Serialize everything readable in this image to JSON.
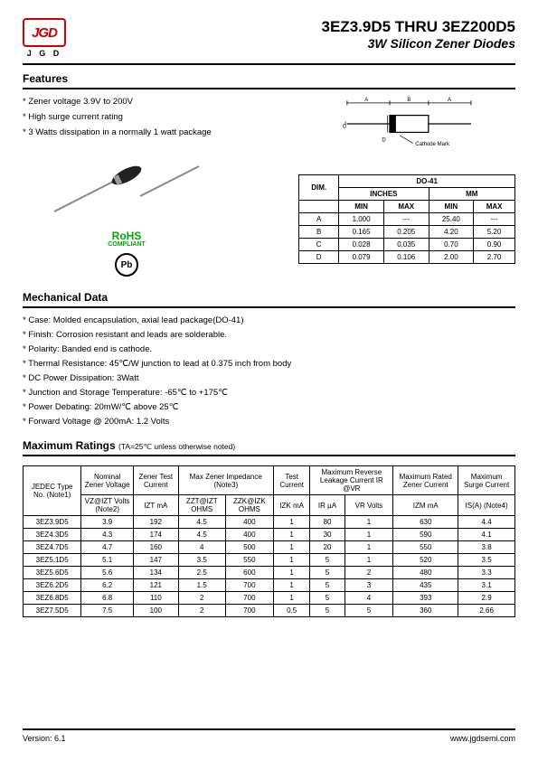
{
  "header": {
    "logo_text": "JGD",
    "logo_letters": "J G D",
    "title": "3EZ3.9D5 THRU 3EZ200D5",
    "subtitle": "3W Silicon Zener Diodes"
  },
  "features": {
    "heading": "Features",
    "items": [
      "* Zener voltage 3.9V to 200V",
      "* High surge current rating",
      "* 3 Watts dissipation in a normally 1 watt package"
    ]
  },
  "rohs": {
    "main": "RoHS",
    "sub": "COMPLIANT"
  },
  "pb_label": "Pb",
  "cathode_label": "Cathode Mark",
  "dim_labels": {
    "A": "A",
    "B": "B",
    "C": "C",
    "D": "D"
  },
  "dim_table": {
    "title": "DO-41",
    "dim_head": "DIM.",
    "units": [
      "INCHES",
      "MM"
    ],
    "sub": [
      "MIN",
      "MAX",
      "MIN",
      "MAX"
    ],
    "rows": [
      [
        "A",
        "1.000",
        "---",
        "25.40",
        "---"
      ],
      [
        "B",
        "0.165",
        "0.205",
        "4.20",
        "5.20"
      ],
      [
        "C",
        "0.028",
        "0.035",
        "0.70",
        "0.90"
      ],
      [
        "D",
        "0.079",
        "0.106",
        "2.00",
        "2.70"
      ]
    ]
  },
  "mechanical": {
    "heading": "Mechanical Data",
    "items": [
      "* Case: Molded encapsulation, axial lead package(DO-41)",
      "* Finish: Corrosion resistant and leads are solderable.",
      "* Polarity: Banded end is cathode.",
      "* Thermal Resistance: 45℃/W junction to lead at 0.375 inch from body",
      "* DC Power Dissipation: 3Watt",
      "* Junction and Storage Temperature: -65℃ to +175℃",
      "* Power Debating: 20mW/℃ above 25℃",
      "* Forward Voltage @ 200mA: 1.2 Volts"
    ]
  },
  "ratings": {
    "heading": "Maximum Ratings",
    "note": "(TA=25℃ unless otherwise noted)",
    "headers": {
      "jedec": "JEDEC Type No. (Note1)",
      "vz": "Nominal Zener Voltage",
      "vz_sub": "VZ@IZT Volts (Note2)",
      "izt": "Zener Test Current",
      "izt_sub": "IZT mA",
      "zmax": "Max Zener Impedance (Note3)",
      "zzt": "ZZT@IZT OHMS",
      "zzk": "ZZK@IZK OHMS",
      "test": "Test Current",
      "izk": "IZK mA",
      "leak": "Maximum Reverse Leakage Current IR @VR",
      "ir": "IR µA",
      "vr": "VR Volts",
      "rated": "Maximum Rated Zener Current",
      "izm": "IZM mA",
      "surge": "Maximum Surge Current",
      "is": "IS(A) (Note4)"
    },
    "rows": [
      [
        "3EZ3.9D5",
        "3.9",
        "192",
        "4.5",
        "400",
        "1",
        "80",
        "1",
        "630",
        "4.4"
      ],
      [
        "3EZ4.3D5",
        "4.3",
        "174",
        "4.5",
        "400",
        "1",
        "30",
        "1",
        "590",
        "4.1"
      ],
      [
        "3EZ4.7D5",
        "4.7",
        "160",
        "4",
        "500",
        "1",
        "20",
        "1",
        "550",
        "3.8"
      ],
      [
        "3EZ5.1D5",
        "5.1",
        "147",
        "3.5",
        "550",
        "1",
        "5",
        "1",
        "520",
        "3.5"
      ],
      [
        "3EZ5.6D5",
        "5.6",
        "134",
        "2.5",
        "600",
        "1",
        "5",
        "2",
        "480",
        "3.3"
      ],
      [
        "3EZ6.2D5",
        "6.2",
        "121",
        "1.5",
        "700",
        "1",
        "5",
        "3",
        "435",
        "3.1"
      ],
      [
        "3EZ6.8D5",
        "6.8",
        "110",
        "2",
        "700",
        "1",
        "5",
        "4",
        "393",
        "2.9"
      ],
      [
        "3EZ7.5D5",
        "7.5",
        "100",
        "2",
        "700",
        "0.5",
        "5",
        "5",
        "360",
        "2.66"
      ]
    ]
  },
  "footer": {
    "version": "Version: 6.1",
    "url": "www.jgdsemi.com"
  }
}
